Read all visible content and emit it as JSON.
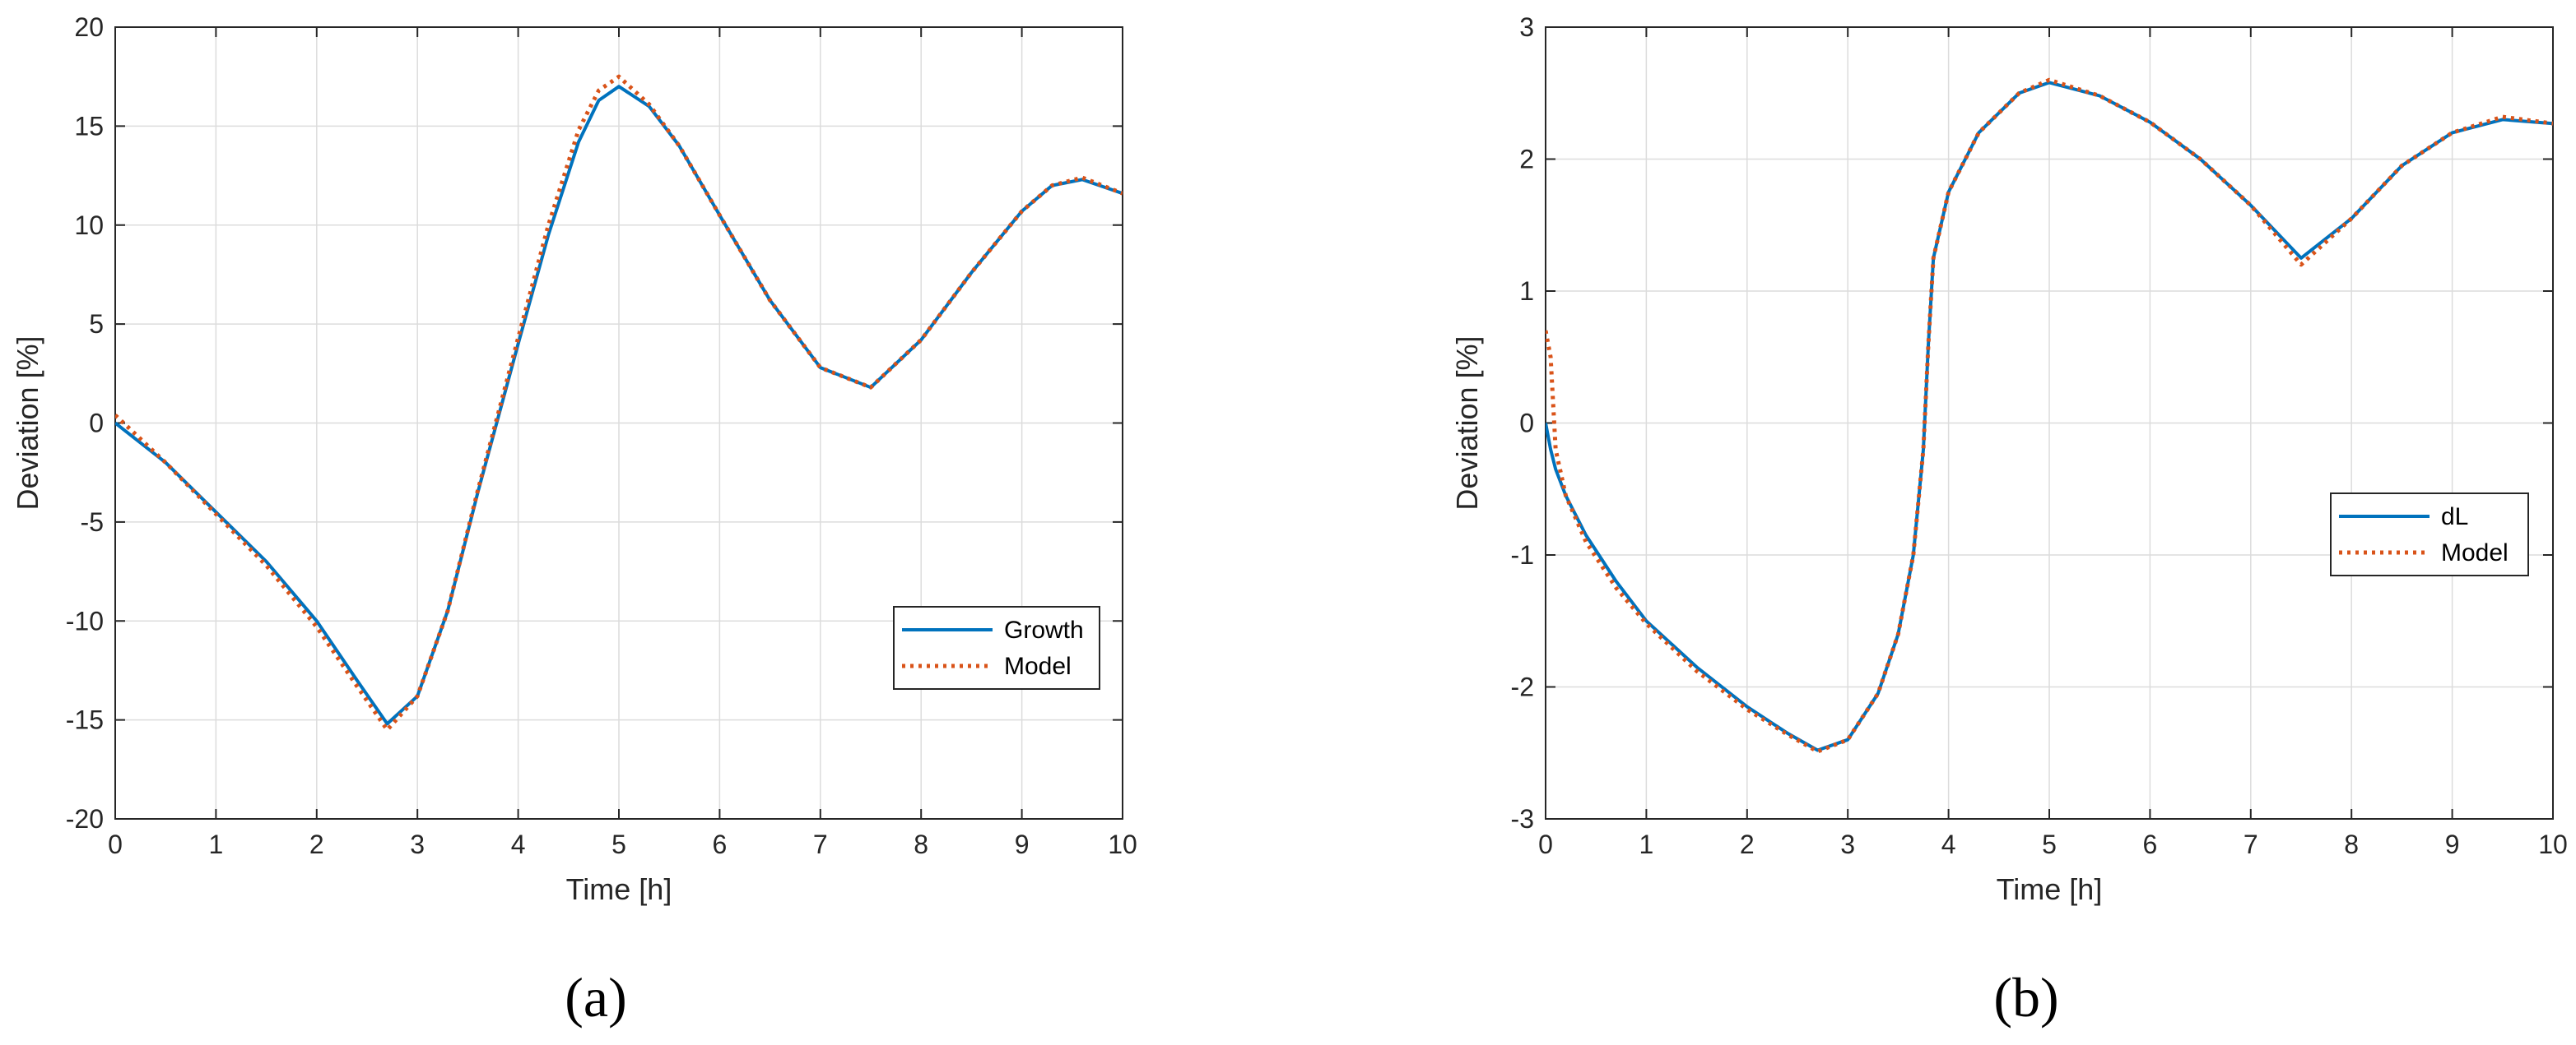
{
  "colors": {
    "series1": "#0072BD",
    "series2": "#D95319",
    "grid": "#dcdcdc",
    "axis": "#262626"
  },
  "chart_data": [
    {
      "type": "line",
      "panel_label": "(a)",
      "xlabel": "Time [h]",
      "ylabel": "Deviation [%]",
      "xlim": [
        0,
        10
      ],
      "ylim": [
        -20,
        20
      ],
      "xticks": [
        0,
        1,
        2,
        3,
        4,
        5,
        6,
        7,
        8,
        9,
        10
      ],
      "yticks": [
        -20,
        -15,
        -10,
        -5,
        0,
        5,
        10,
        15,
        20
      ],
      "grid": true,
      "legend_position": "lower-right",
      "series": [
        {
          "name": "Growth",
          "style": "solid",
          "color": "#0072BD",
          "x": [
            0,
            0.5,
            1,
            1.5,
            2,
            2.4,
            2.7,
            3,
            3.3,
            3.6,
            4,
            4.3,
            4.6,
            4.8,
            5,
            5.3,
            5.6,
            6,
            6.5,
            7,
            7.5,
            8,
            8.5,
            9,
            9.3,
            9.6,
            10
          ],
          "y": [
            0,
            -2,
            -4.5,
            -7,
            -10,
            -13,
            -15.2,
            -13.8,
            -9.5,
            -3.5,
            4,
            9.5,
            14.2,
            16.3,
            17,
            16,
            14,
            10.5,
            6.2,
            2.8,
            1.8,
            4.2,
            7.6,
            10.7,
            12,
            12.3,
            11.6
          ]
        },
        {
          "name": "Model",
          "style": "dotted",
          "color": "#D95319",
          "x": [
            0,
            0.5,
            1,
            1.5,
            2,
            2.4,
            2.7,
            3,
            3.3,
            3.6,
            4,
            4.3,
            4.6,
            4.8,
            5,
            5.3,
            5.6,
            6,
            6.5,
            7,
            7.5,
            8,
            8.5,
            9,
            9.3,
            9.6,
            10
          ],
          "y": [
            0.4,
            -2,
            -4.6,
            -7.2,
            -10.3,
            -13.3,
            -15.5,
            -13.8,
            -9.5,
            -3.4,
            4.3,
            10,
            14.8,
            16.8,
            17.5,
            16.1,
            14,
            10.5,
            6.2,
            2.8,
            1.8,
            4.2,
            7.6,
            10.7,
            12,
            12.4,
            11.6
          ]
        }
      ]
    },
    {
      "type": "line",
      "panel_label": "(b)",
      "xlabel": "Time [h]",
      "ylabel": "Deviation [%]",
      "xlim": [
        0,
        10
      ],
      "ylim": [
        -3,
        3
      ],
      "xticks": [
        0,
        1,
        2,
        3,
        4,
        5,
        6,
        7,
        8,
        9,
        10
      ],
      "yticks": [
        -3,
        -2,
        -1,
        0,
        1,
        2,
        3
      ],
      "grid": true,
      "legend_position": "right",
      "series": [
        {
          "name": "dL",
          "style": "solid",
          "color": "#0072BD",
          "x": [
            0,
            0.05,
            0.1,
            0.2,
            0.4,
            0.7,
            1,
            1.5,
            2,
            2.4,
            2.7,
            3,
            3.3,
            3.5,
            3.65,
            3.75,
            3.8,
            3.85,
            4,
            4.3,
            4.7,
            5,
            5.5,
            6,
            6.5,
            7,
            7.5,
            8,
            8.5,
            9,
            9.5,
            10
          ],
          "y": [
            0,
            -0.2,
            -0.35,
            -0.55,
            -0.85,
            -1.2,
            -1.5,
            -1.85,
            -2.15,
            -2.35,
            -2.48,
            -2.4,
            -2.05,
            -1.6,
            -1,
            -0.2,
            0.6,
            1.25,
            1.75,
            2.2,
            2.5,
            2.58,
            2.48,
            2.28,
            2,
            1.65,
            1.25,
            1.55,
            1.95,
            2.2,
            2.3,
            2.27
          ]
        },
        {
          "name": "Model",
          "style": "dotted",
          "color": "#D95319",
          "x": [
            0,
            0.05,
            0.1,
            0.2,
            0.4,
            0.7,
            1,
            1.5,
            2,
            2.4,
            2.7,
            3,
            3.3,
            3.5,
            3.65,
            3.75,
            3.8,
            3.85,
            4,
            4.3,
            4.7,
            5,
            5.5,
            6,
            6.5,
            7,
            7.5,
            8,
            8.5,
            9,
            9.5,
            10
          ],
          "y": [
            0.7,
            0.5,
            -0.2,
            -0.55,
            -0.9,
            -1.25,
            -1.52,
            -1.88,
            -2.17,
            -2.36,
            -2.49,
            -2.4,
            -2.05,
            -1.6,
            -1,
            -0.2,
            0.6,
            1.25,
            1.75,
            2.2,
            2.5,
            2.6,
            2.48,
            2.28,
            2,
            1.65,
            1.2,
            1.55,
            1.95,
            2.2,
            2.32,
            2.27
          ]
        }
      ]
    }
  ]
}
